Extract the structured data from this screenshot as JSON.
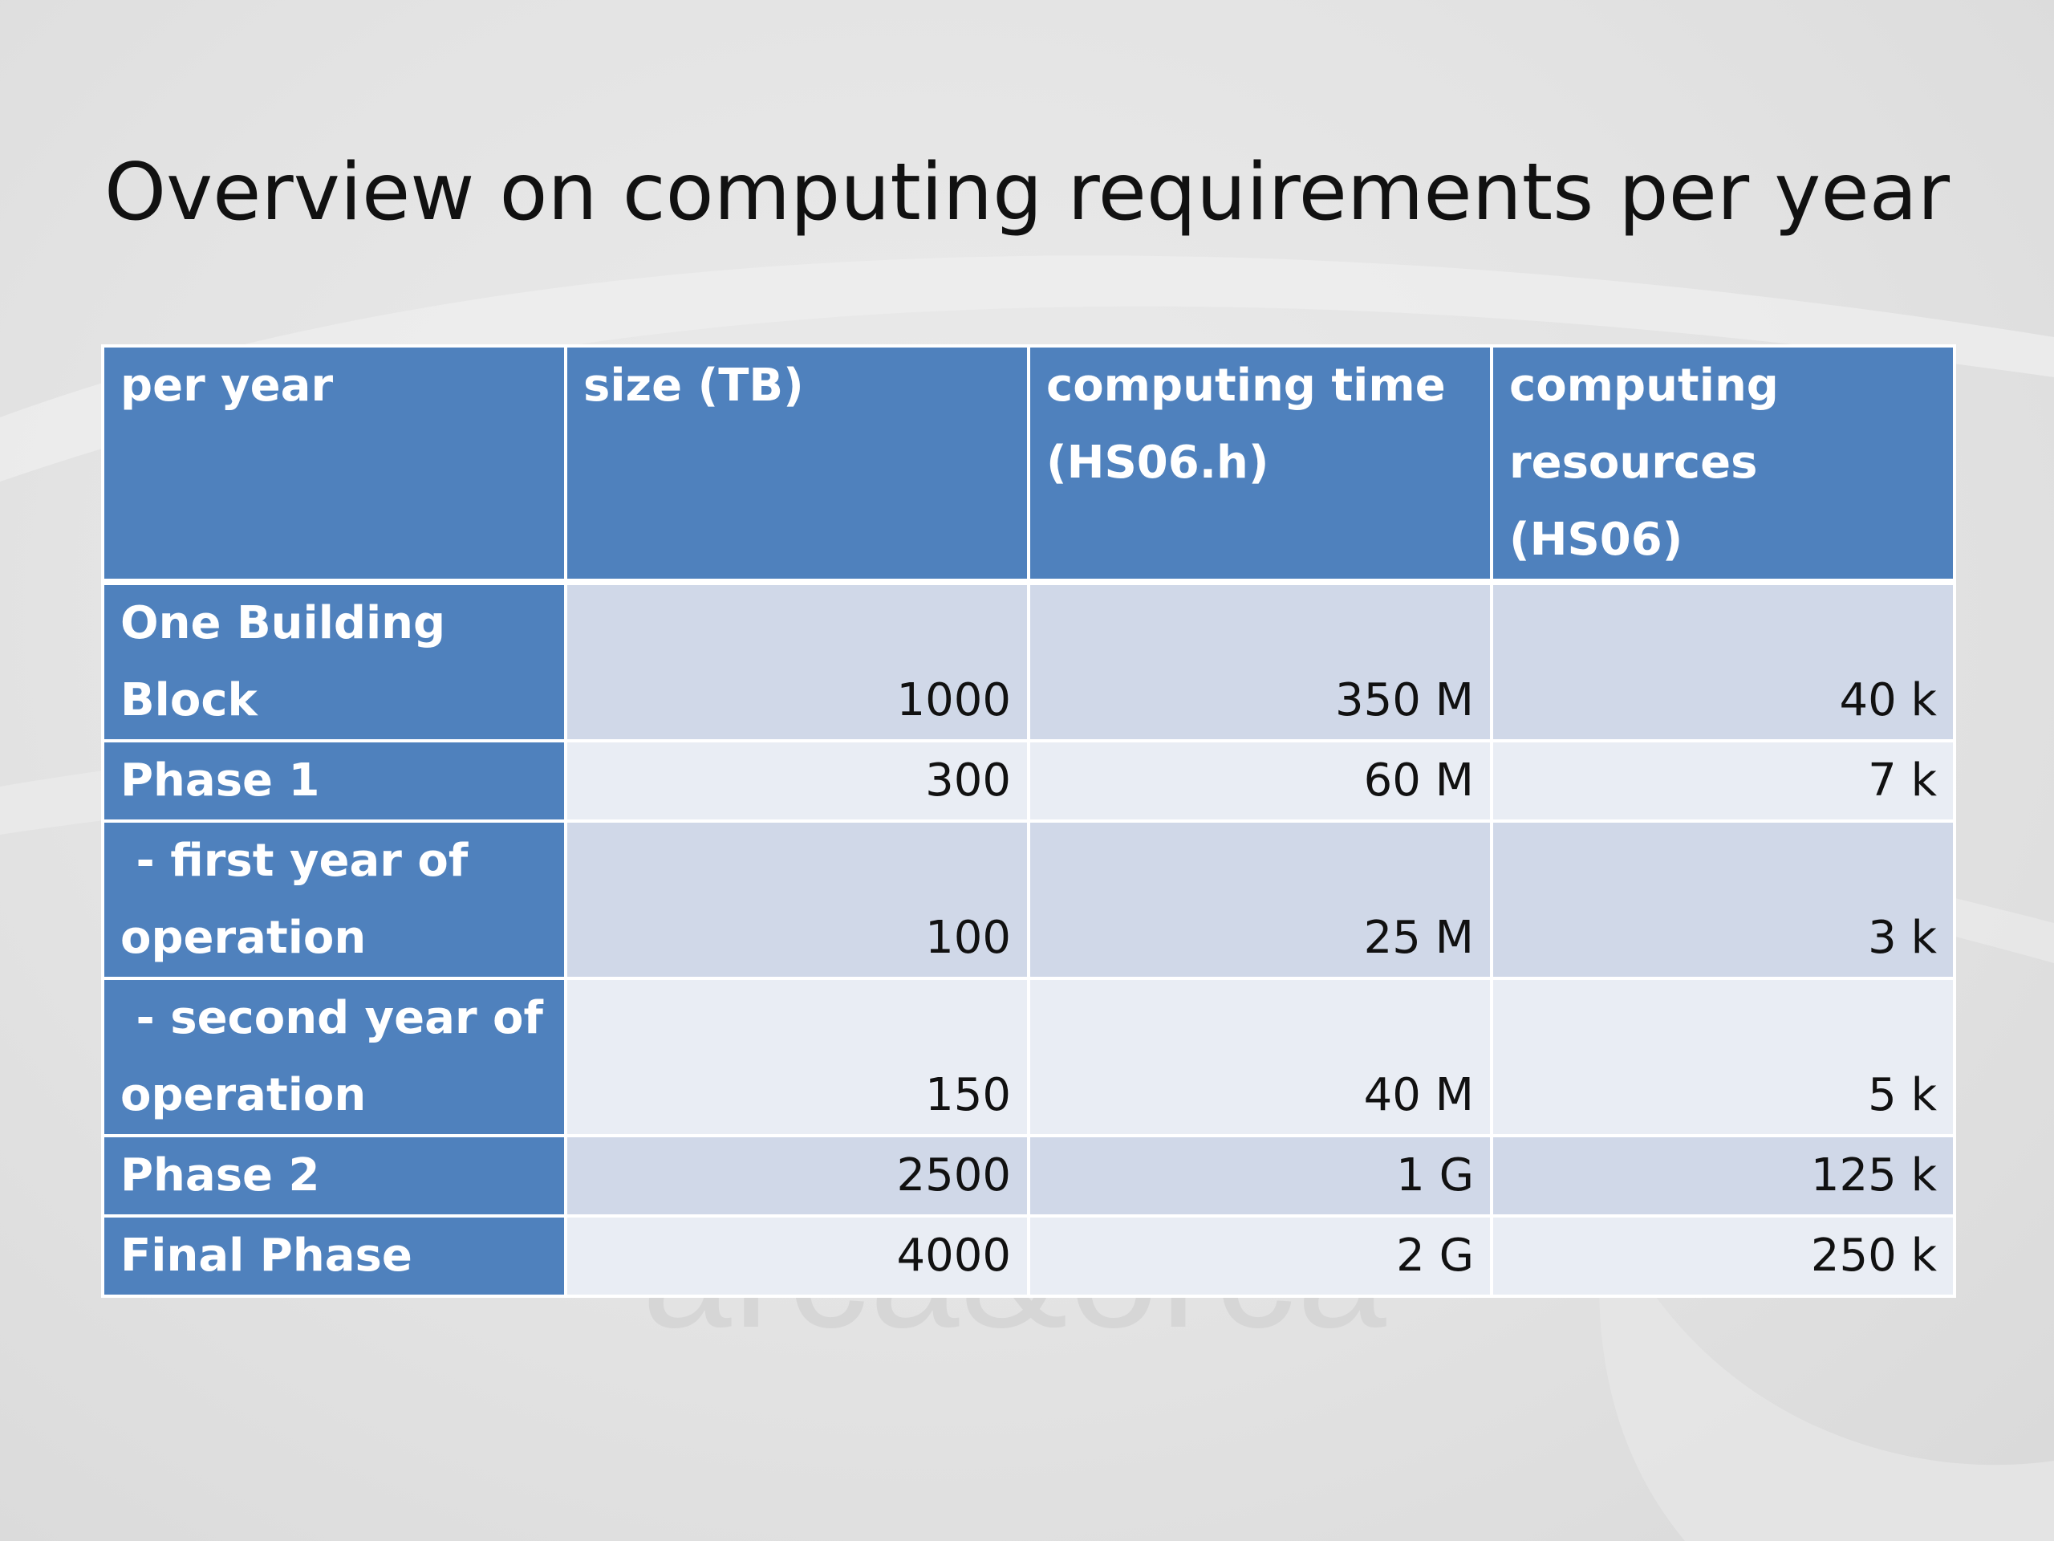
{
  "slide": {
    "title": "Overview on computing requirements per year",
    "watermark": "arca&orca"
  },
  "table": {
    "headers": [
      "per year",
      "size (TB)",
      "computing time (HS06.h)",
      "computing resources (HS06)"
    ],
    "rows": [
      {
        "label": "One Building Block",
        "size": "1000",
        "time": "350 M",
        "resources": "40 k"
      },
      {
        "label": "Phase 1",
        "size": "300",
        "time": "60 M",
        "resources": "7 k"
      },
      {
        "label": " - first year of operation",
        "size": "100",
        "time": "25 M",
        "resources": "3 k"
      },
      {
        "label": " - second year of operation",
        "size": "150",
        "time": "40 M",
        "resources": "5 k"
      },
      {
        "label": "Phase 2",
        "size": "2500",
        "time": "1 G",
        "resources": "125 k"
      },
      {
        "label": "Final Phase",
        "size": "4000",
        "time": "2 G",
        "resources": "250 k"
      }
    ]
  },
  "colors": {
    "header_blue": "#4f81bd",
    "row_band_dark": "#d0d8e8",
    "row_band_light": "#e9edf4"
  }
}
